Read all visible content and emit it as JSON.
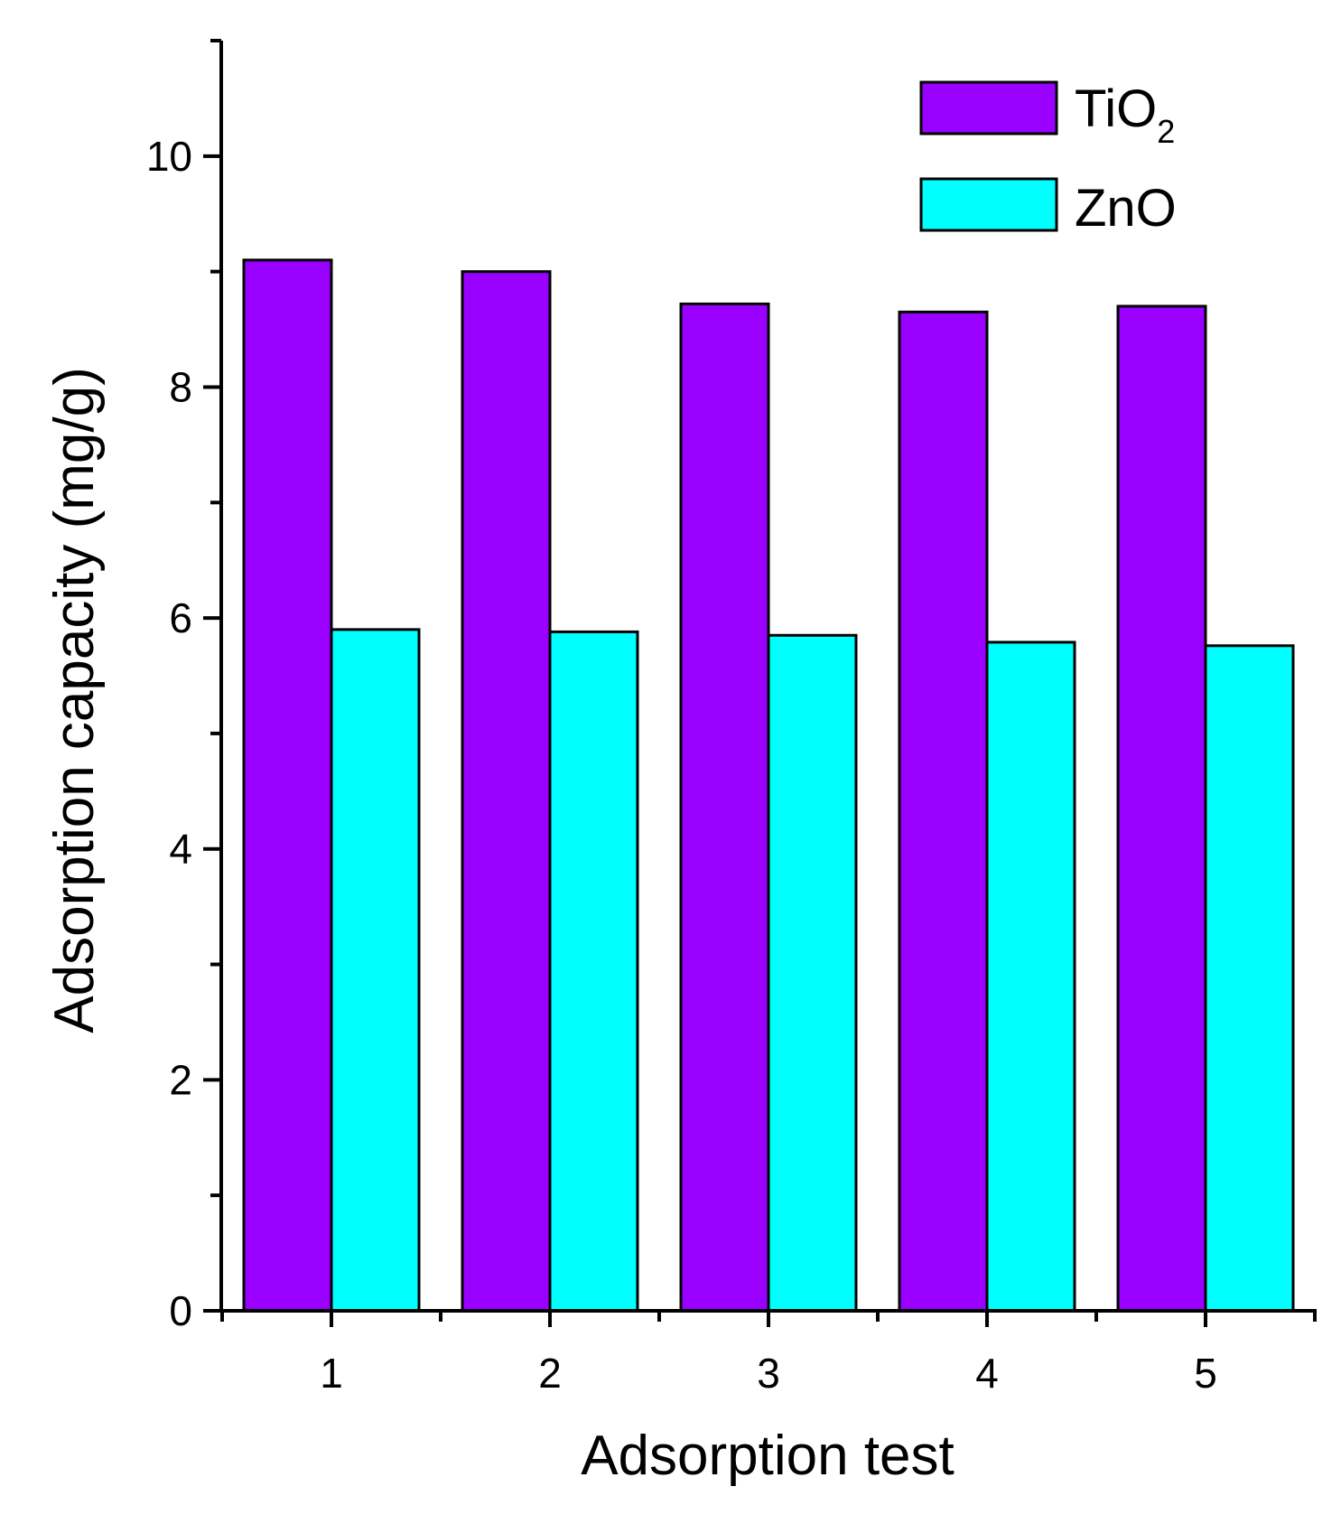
{
  "chart_data": {
    "type": "bar",
    "title": "",
    "xlabel": "Adsorption test",
    "ylabel": "Adsorption capacity (mg/g)",
    "categories": [
      "1",
      "2",
      "3",
      "4",
      "5"
    ],
    "ylim": [
      0,
      11
    ],
    "y_major_ticks": [
      0,
      2,
      4,
      6,
      8,
      10
    ],
    "y_tick_labels": [
      "0",
      "2",
      "4",
      "6",
      "8",
      "10"
    ],
    "grid": false,
    "legend_position": "top-right",
    "series": [
      {
        "name": "TiO",
        "name_subscript": "2",
        "color": "#9900ff",
        "values": [
          9.1,
          9.0,
          8.72,
          8.65,
          8.7
        ]
      },
      {
        "name": "ZnO",
        "color": "#00ffff",
        "values": [
          5.9,
          5.88,
          5.85,
          5.79,
          5.76
        ]
      }
    ]
  }
}
